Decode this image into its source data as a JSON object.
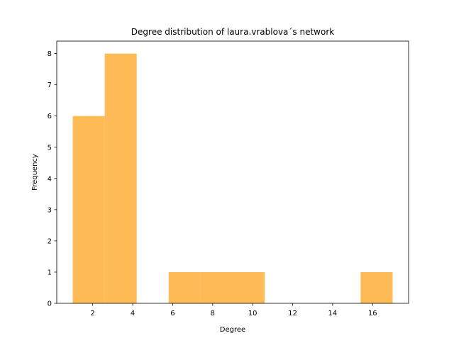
{
  "chart_data": {
    "type": "bar",
    "title": "Degree distribution of laura.vrablova´s network",
    "xlabel": "Degree",
    "ylabel": "Frequency",
    "bin_edges": [
      1.0,
      2.6,
      4.2,
      5.8,
      7.4,
      9.0,
      10.6,
      12.2,
      13.8,
      15.4,
      17.0
    ],
    "values": [
      6,
      8,
      0,
      1,
      1,
      1,
      0,
      0,
      0,
      1
    ],
    "xlim": [
      0.2,
      17.8
    ],
    "ylim": [
      0,
      8.4
    ],
    "xticks": [
      2,
      4,
      6,
      8,
      10,
      12,
      14,
      16
    ],
    "yticks": [
      0,
      1,
      2,
      3,
      4,
      5,
      6,
      7,
      8
    ],
    "bar_color": "#ffbb55",
    "grid": false,
    "legend": "none"
  }
}
